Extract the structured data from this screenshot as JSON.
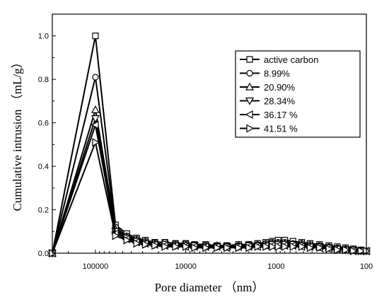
{
  "chart_data": {
    "type": "line",
    "xlabel": "Pore diameter （nm）",
    "ylabel": "Cumulative intrusion （mL/g）",
    "x_scale": "log",
    "x_reversed": true,
    "xlim": [
      300000,
      100
    ],
    "ylim": [
      0,
      1.1
    ],
    "xticks": [
      100000,
      10000,
      1000,
      100
    ],
    "xtick_labels": [
      "100000",
      "10000",
      "1000",
      "100"
    ],
    "yticks": [
      0.0,
      0.2,
      0.4,
      0.6,
      0.8,
      1.0
    ],
    "ytick_labels": [
      "0.0",
      "0.2",
      "0.4",
      "0.6",
      "0.8",
      "1.0"
    ],
    "legend_position": "top-right",
    "color": "#000000",
    "series": [
      {
        "name": "active carbon",
        "marker": "square",
        "x": [
          300000,
          100000,
          60000,
          45000,
          35000,
          28000,
          22000,
          17000,
          13000,
          10000,
          8000,
          6000,
          4500,
          3500,
          2600,
          2000,
          1600,
          1300,
          1100,
          950,
          800,
          650,
          520,
          420,
          330,
          260,
          210,
          170,
          140,
          115,
          100
        ],
        "y": [
          0.0,
          1.0,
          0.13,
          0.09,
          0.07,
          0.06,
          0.05,
          0.05,
          0.045,
          0.045,
          0.04,
          0.04,
          0.035,
          0.035,
          0.04,
          0.04,
          0.045,
          0.05,
          0.055,
          0.06,
          0.06,
          0.055,
          0.05,
          0.045,
          0.04,
          0.035,
          0.03,
          0.025,
          0.02,
          0.015,
          0.01
        ]
      },
      {
        "name": "8.99%",
        "marker": "circle",
        "x": [
          300000,
          100000,
          60000,
          45000,
          35000,
          28000,
          22000,
          17000,
          13000,
          10000,
          8000,
          6000,
          4500,
          3500,
          2600,
          2000,
          1600,
          1300,
          1100,
          950,
          800,
          650,
          520,
          420,
          330,
          260,
          210,
          170,
          140,
          115,
          100
        ],
        "y": [
          0.0,
          0.81,
          0.12,
          0.08,
          0.065,
          0.055,
          0.05,
          0.05,
          0.045,
          0.045,
          0.04,
          0.04,
          0.035,
          0.035,
          0.035,
          0.04,
          0.04,
          0.045,
          0.05,
          0.05,
          0.05,
          0.045,
          0.045,
          0.04,
          0.035,
          0.03,
          0.025,
          0.02,
          0.015,
          0.015,
          0.01
        ]
      },
      {
        "name": "20.90%",
        "marker": "triangle-up",
        "x": [
          300000,
          100000,
          60000,
          45000,
          35000,
          28000,
          22000,
          17000,
          13000,
          10000,
          8000,
          6000,
          4500,
          3500,
          2600,
          2000,
          1600,
          1300,
          1100,
          950,
          800,
          650,
          520,
          420,
          330,
          260,
          210,
          170,
          140,
          115,
          100
        ],
        "y": [
          0.0,
          0.66,
          0.11,
          0.075,
          0.06,
          0.05,
          0.045,
          0.04,
          0.04,
          0.04,
          0.035,
          0.035,
          0.035,
          0.03,
          0.035,
          0.035,
          0.04,
          0.04,
          0.045,
          0.045,
          0.045,
          0.04,
          0.04,
          0.035,
          0.03,
          0.025,
          0.02,
          0.02,
          0.015,
          0.01,
          0.01
        ]
      },
      {
        "name": "28.34%",
        "marker": "triangle-down",
        "x": [
          300000,
          100000,
          60000,
          45000,
          35000,
          28000,
          22000,
          17000,
          13000,
          10000,
          8000,
          6000,
          4500,
          3500,
          2600,
          2000,
          1600,
          1300,
          1100,
          950,
          800,
          650,
          520,
          420,
          330,
          260,
          210,
          170,
          140,
          115,
          100
        ],
        "y": [
          0.0,
          0.62,
          0.1,
          0.07,
          0.055,
          0.045,
          0.04,
          0.04,
          0.035,
          0.035,
          0.035,
          0.03,
          0.03,
          0.03,
          0.03,
          0.035,
          0.035,
          0.035,
          0.04,
          0.04,
          0.04,
          0.04,
          0.035,
          0.03,
          0.03,
          0.025,
          0.02,
          0.015,
          0.015,
          0.01,
          0.01
        ]
      },
      {
        "name": "36.17 %",
        "marker": "triangle-left",
        "x": [
          300000,
          100000,
          60000,
          45000,
          35000,
          28000,
          22000,
          17000,
          13000,
          10000,
          8000,
          6000,
          4500,
          3500,
          2600,
          2000,
          1600,
          1300,
          1100,
          950,
          800,
          650,
          520,
          420,
          330,
          260,
          210,
          170,
          140,
          115,
          100
        ],
        "y": [
          0.0,
          0.59,
          0.09,
          0.065,
          0.05,
          0.045,
          0.04,
          0.035,
          0.035,
          0.03,
          0.03,
          0.03,
          0.03,
          0.025,
          0.03,
          0.03,
          0.03,
          0.035,
          0.035,
          0.035,
          0.035,
          0.035,
          0.03,
          0.03,
          0.025,
          0.02,
          0.02,
          0.015,
          0.01,
          0.01,
          0.01
        ]
      },
      {
        "name": "41.51 %",
        "marker": "triangle-right",
        "x": [
          300000,
          100000,
          60000,
          45000,
          35000,
          28000,
          22000,
          17000,
          13000,
          10000,
          8000,
          6000,
          4500,
          3500,
          2600,
          2000,
          1600,
          1300,
          1100,
          950,
          800,
          650,
          520,
          420,
          330,
          260,
          210,
          170,
          140,
          115,
          100
        ],
        "y": [
          0.0,
          0.51,
          0.08,
          0.06,
          0.045,
          0.04,
          0.035,
          0.03,
          0.03,
          0.03,
          0.025,
          0.025,
          0.025,
          0.025,
          0.025,
          0.025,
          0.03,
          0.03,
          0.03,
          0.03,
          0.03,
          0.03,
          0.03,
          0.025,
          0.025,
          0.02,
          0.015,
          0.015,
          0.01,
          0.01,
          0.01
        ]
      }
    ]
  }
}
